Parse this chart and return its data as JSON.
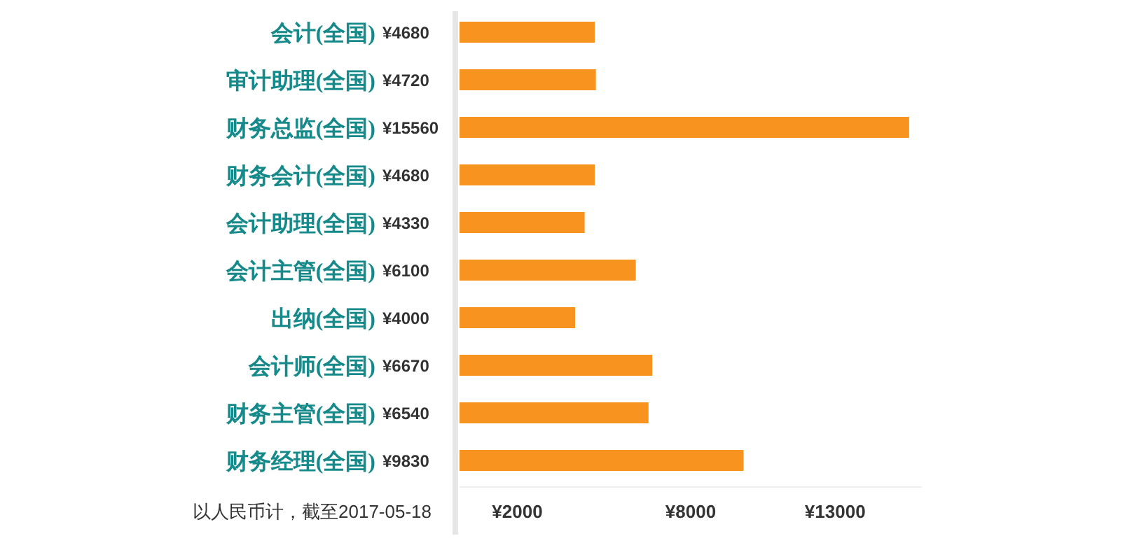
{
  "chart_data": {
    "type": "bar",
    "orientation": "horizontal",
    "categories": [
      "会计(全国)",
      "审计助理(全国)",
      "财务总监(全国)",
      "财务会计(全国)",
      "会计助理(全国)",
      "会计主管(全国)",
      "出纳(全国)",
      "会计师(全国)",
      "财务主管(全国)",
      "财务经理(全国)"
    ],
    "values": [
      4680,
      4720,
      15560,
      4680,
      4330,
      6100,
      4000,
      6670,
      6540,
      9830
    ],
    "value_labels": [
      "¥4680",
      "¥4720",
      "¥15560",
      "¥4680",
      "¥4330",
      "¥6100",
      "¥4000",
      "¥6670",
      "¥6540",
      "¥9830"
    ],
    "color": "#f7931e",
    "xlim": [
      0,
      16000
    ],
    "xticks": [
      {
        "value": 2000,
        "label": "¥2000"
      },
      {
        "value": 8000,
        "label": "¥8000"
      },
      {
        "value": 13000,
        "label": "¥13000"
      }
    ],
    "annotations": [
      "以人民币计，截至2017-05-18"
    ]
  }
}
